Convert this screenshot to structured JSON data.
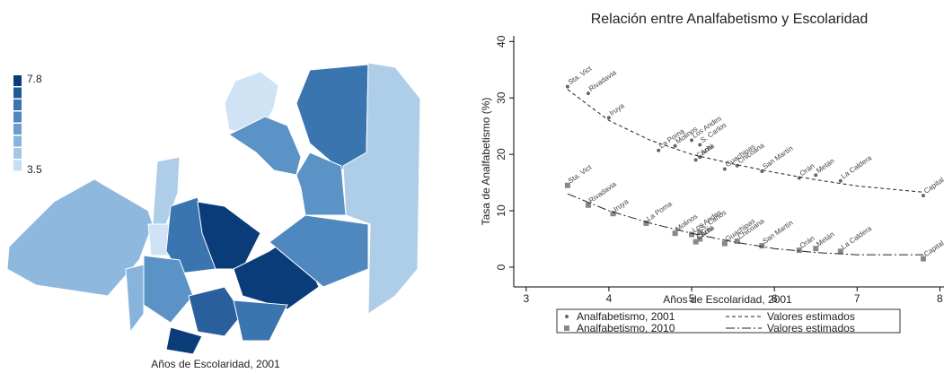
{
  "chart_data": [
    {
      "type": "map",
      "caption": "Años de Escolaridad, 2001",
      "legend": {
        "max": 7.8,
        "min": 3.5,
        "colors": [
          "#0b3c7a",
          "#1f5a98",
          "#3a75b0",
          "#4f87bf",
          "#6a9dcf",
          "#86b4dc",
          "#a5c7e6",
          "#c6ddf2"
        ]
      }
    },
    {
      "type": "scatter",
      "title": "Relación entre Analfabetismo y Escolaridad",
      "x_label": "Años de Escolaridad, 2001",
      "y_label": "Tasa de Analfabetismo (%)",
      "xlim": [
        2.85,
        8.05
      ],
      "ylim": [
        -3.5,
        41
      ],
      "xticks": [
        3,
        4,
        5,
        6,
        7,
        8
      ],
      "yticks": [
        0,
        10,
        20,
        30,
        40
      ],
      "series": [
        {
          "name": "Analfabetismo, 2001",
          "type": "scatter",
          "marker": "circle",
          "color": "#666666",
          "x": [
            3.5,
            3.75,
            4.0,
            4.6,
            4.8,
            5.0,
            5.1,
            5.1,
            5.05,
            5.4,
            5.55,
            5.85,
            6.3,
            6.5,
            6.8,
            7.8
          ],
          "values": [
            32,
            30.8,
            26.5,
            20.7,
            21.5,
            22.5,
            21.7,
            19.5,
            19,
            17.4,
            18,
            17,
            15.8,
            16.3,
            15.3,
            12.7
          ],
          "labels": [
            "Sta. Vict",
            "Rivadavia",
            "Iruya",
            "La Poma",
            "Molinos",
            "Los Andes",
            "S. Carlos",
            "Anta",
            "Cachi",
            "Guachipas",
            "Chicoana",
            "San Martín",
            "Orán",
            "Metán",
            "La Caldera",
            "Capital"
          ]
        },
        {
          "name": "Valores estimados",
          "type": "line",
          "dash": "4,3",
          "color": "#222222",
          "x": [
            3.5,
            4,
            4.5,
            5,
            5.5,
            6,
            6.5,
            7,
            7.5,
            7.8
          ],
          "values": [
            31.5,
            26,
            22.5,
            20,
            18.3,
            16.8,
            15.5,
            14.4,
            13.7,
            13.3
          ]
        },
        {
          "name": "Analfabetismo, 2010",
          "type": "scatter",
          "marker": "square",
          "color": "#888888",
          "x": [
            3.5,
            3.75,
            4.05,
            4.45,
            4.8,
            5.0,
            5.1,
            5.1,
            5.05,
            5.4,
            5.55,
            5.85,
            6.3,
            6.5,
            6.8,
            7.8
          ],
          "values": [
            14.5,
            11,
            9.5,
            7.8,
            6,
            5.8,
            6.2,
            5,
            4.5,
            4.2,
            4.6,
            3.8,
            3,
            3.3,
            2.8,
            1.5
          ],
          "labels": [
            "Sta. Vict",
            "Rivadavia",
            "Iruya",
            "La Poma",
            "Molinos",
            "Los Andes",
            "S. Carlos",
            "Anta",
            "Cachi",
            "Guachipas",
            "Chicoana",
            "San Martín",
            "Orán",
            "Metán",
            "La Caldera",
            "Capital"
          ]
        },
        {
          "name": "Valores estimados",
          "type": "line",
          "dash": "10,3,2,3",
          "color": "#222222",
          "x": [
            3.5,
            4,
            4.5,
            5,
            5.5,
            6,
            6.5,
            7,
            7.8
          ],
          "values": [
            13,
            10,
            7.8,
            6,
            4.5,
            3.3,
            2.6,
            2.2,
            2.2
          ]
        }
      ]
    }
  ]
}
